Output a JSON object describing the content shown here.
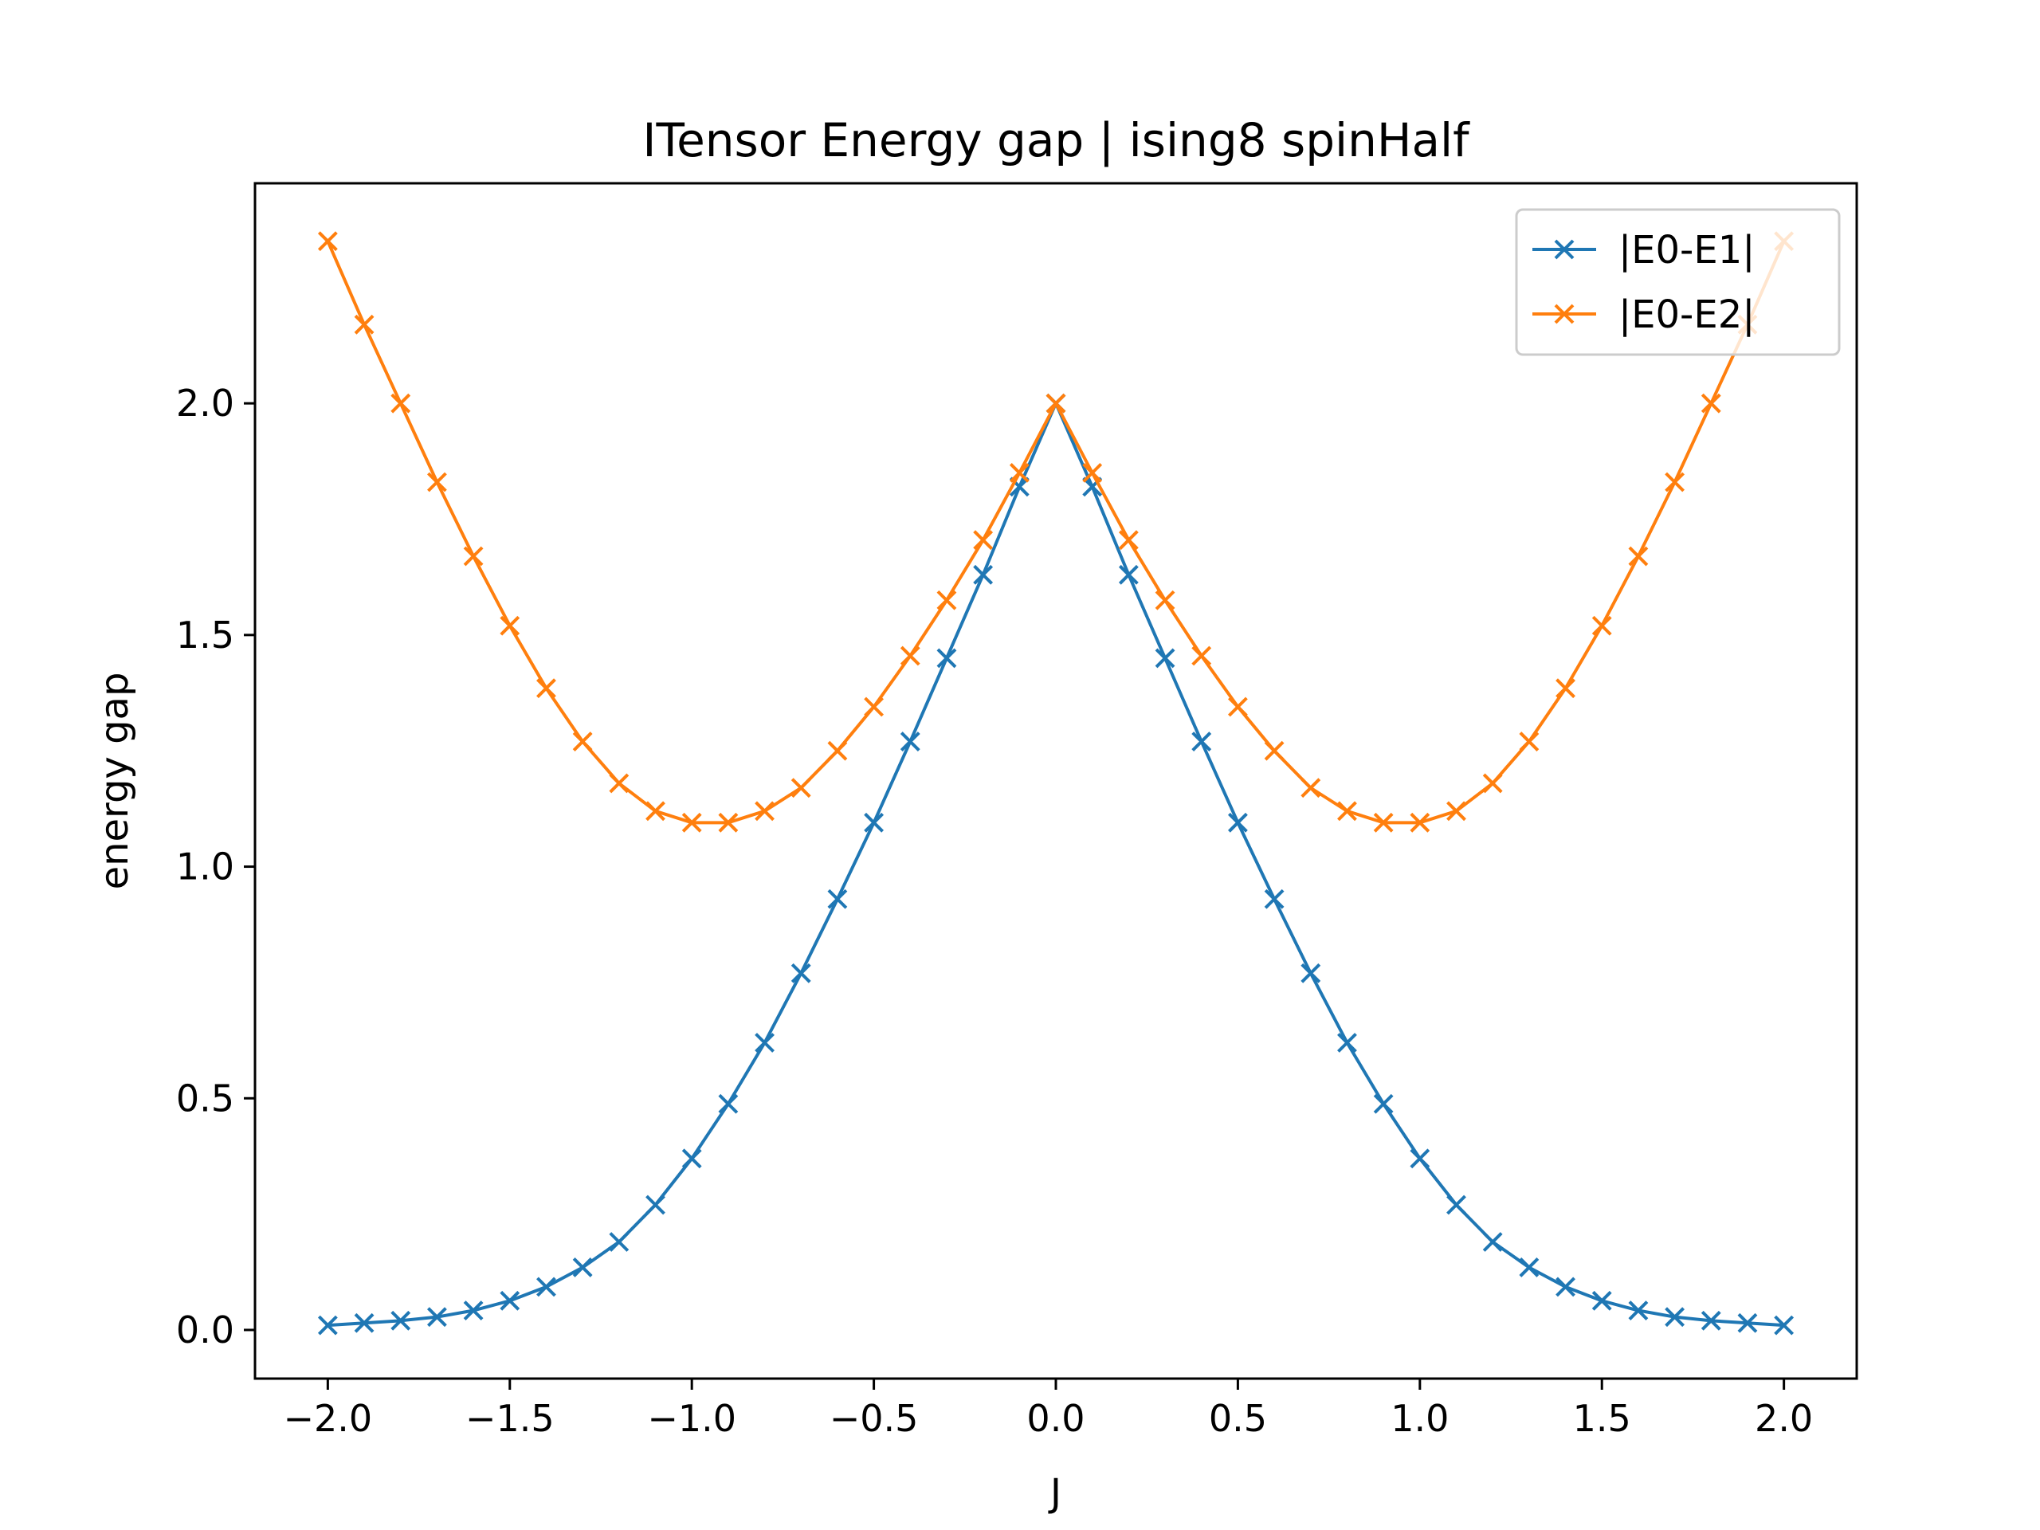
{
  "chart_data": {
    "type": "line",
    "title": "ITensor Energy gap | ising8 spinHalf",
    "xlabel": "J",
    "ylabel": "energy gap",
    "xlim": [
      -2.2,
      2.2
    ],
    "ylim": [
      -0.105,
      2.475
    ],
    "xticks": [
      -2.0,
      -1.5,
      -1.0,
      -0.5,
      0.0,
      0.5,
      1.0,
      1.5,
      2.0
    ],
    "xtick_labels": [
      "−2.0",
      "−1.5",
      "−1.0",
      "−0.5",
      "0.0",
      "0.5",
      "1.0",
      "1.5",
      "2.0"
    ],
    "yticks": [
      0.0,
      0.5,
      1.0,
      1.5,
      2.0
    ],
    "ytick_labels": [
      "0.0",
      "0.5",
      "1.0",
      "1.5",
      "2.0"
    ],
    "grid": false,
    "legend_position": "top-right",
    "marker": "x",
    "x": [
      -2.0,
      -1.9,
      -1.8,
      -1.7,
      -1.6,
      -1.5,
      -1.4,
      -1.3,
      -1.2,
      -1.1,
      -1.0,
      -0.9,
      -0.8,
      -0.7,
      -0.6,
      -0.5,
      -0.4,
      -0.3,
      -0.2,
      -0.1,
      0.0,
      0.1,
      0.2,
      0.3,
      0.4,
      0.5,
      0.6,
      0.7,
      0.8,
      0.9,
      1.0,
      1.1,
      1.2,
      1.3,
      1.4,
      1.5,
      1.6,
      1.7,
      1.8,
      1.9,
      2.0
    ],
    "series": [
      {
        "name": "|E0-E1|",
        "color": "#1f77b4",
        "values": [
          0.01,
          0.015,
          0.02,
          0.028,
          0.042,
          0.063,
          0.093,
          0.135,
          0.19,
          0.27,
          0.37,
          0.488,
          0.62,
          0.77,
          0.93,
          1.095,
          1.27,
          1.45,
          1.63,
          1.82,
          2.0,
          1.82,
          1.63,
          1.45,
          1.27,
          1.095,
          0.93,
          0.77,
          0.62,
          0.488,
          0.37,
          0.27,
          0.19,
          0.135,
          0.093,
          0.063,
          0.042,
          0.028,
          0.02,
          0.015,
          0.01
        ]
      },
      {
        "name": "|E0-E2|",
        "color": "#ff7f0e",
        "values": [
          2.35,
          2.17,
          2.0,
          1.83,
          1.67,
          1.52,
          1.385,
          1.27,
          1.18,
          1.12,
          1.095,
          1.095,
          1.12,
          1.17,
          1.25,
          1.345,
          1.455,
          1.575,
          1.705,
          1.85,
          2.0,
          1.85,
          1.705,
          1.575,
          1.455,
          1.345,
          1.25,
          1.17,
          1.12,
          1.095,
          1.095,
          1.12,
          1.18,
          1.27,
          1.385,
          1.52,
          1.67,
          1.83,
          2.0,
          2.17,
          2.35
        ]
      }
    ]
  }
}
